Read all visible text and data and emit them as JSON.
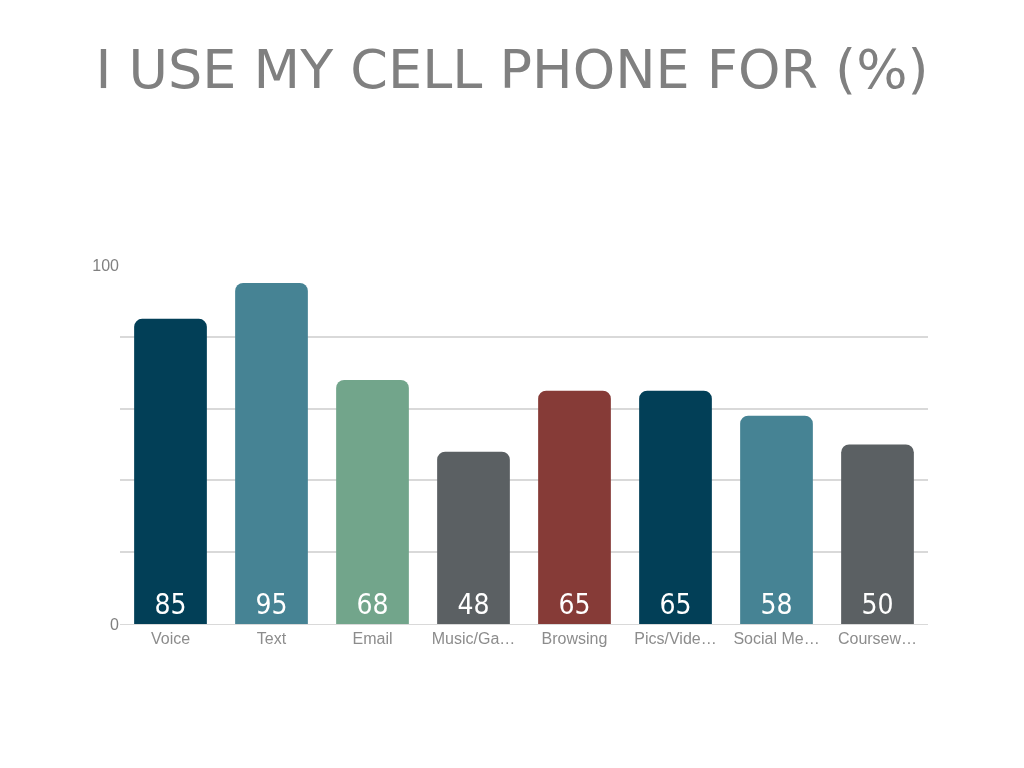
{
  "chart_data": {
    "type": "bar",
    "title": "I USE MY CELL PHONE FOR (%)",
    "categories": [
      "Voice",
      "Text",
      "Email",
      "Music/Ga…",
      "Browsing",
      "Pics/Vide…",
      "Social Me…",
      "Coursew…"
    ],
    "values": [
      85,
      95,
      68,
      48,
      65,
      65,
      58,
      50
    ],
    "colors": [
      "#023f57",
      "#468394",
      "#72a58b",
      "#5b6063",
      "#863b37",
      "#023f57",
      "#468394",
      "#5b6063"
    ],
    "ylim": [
      0,
      100
    ],
    "yticks": [
      0,
      {
        "value": 20,
        "label": null
      },
      {
        "value": 40,
        "label": null
      },
      {
        "value": 60,
        "label": null
      },
      {
        "value": 80,
        "label": null
      },
      100
    ],
    "grid": "y",
    "data_labels": true
  }
}
